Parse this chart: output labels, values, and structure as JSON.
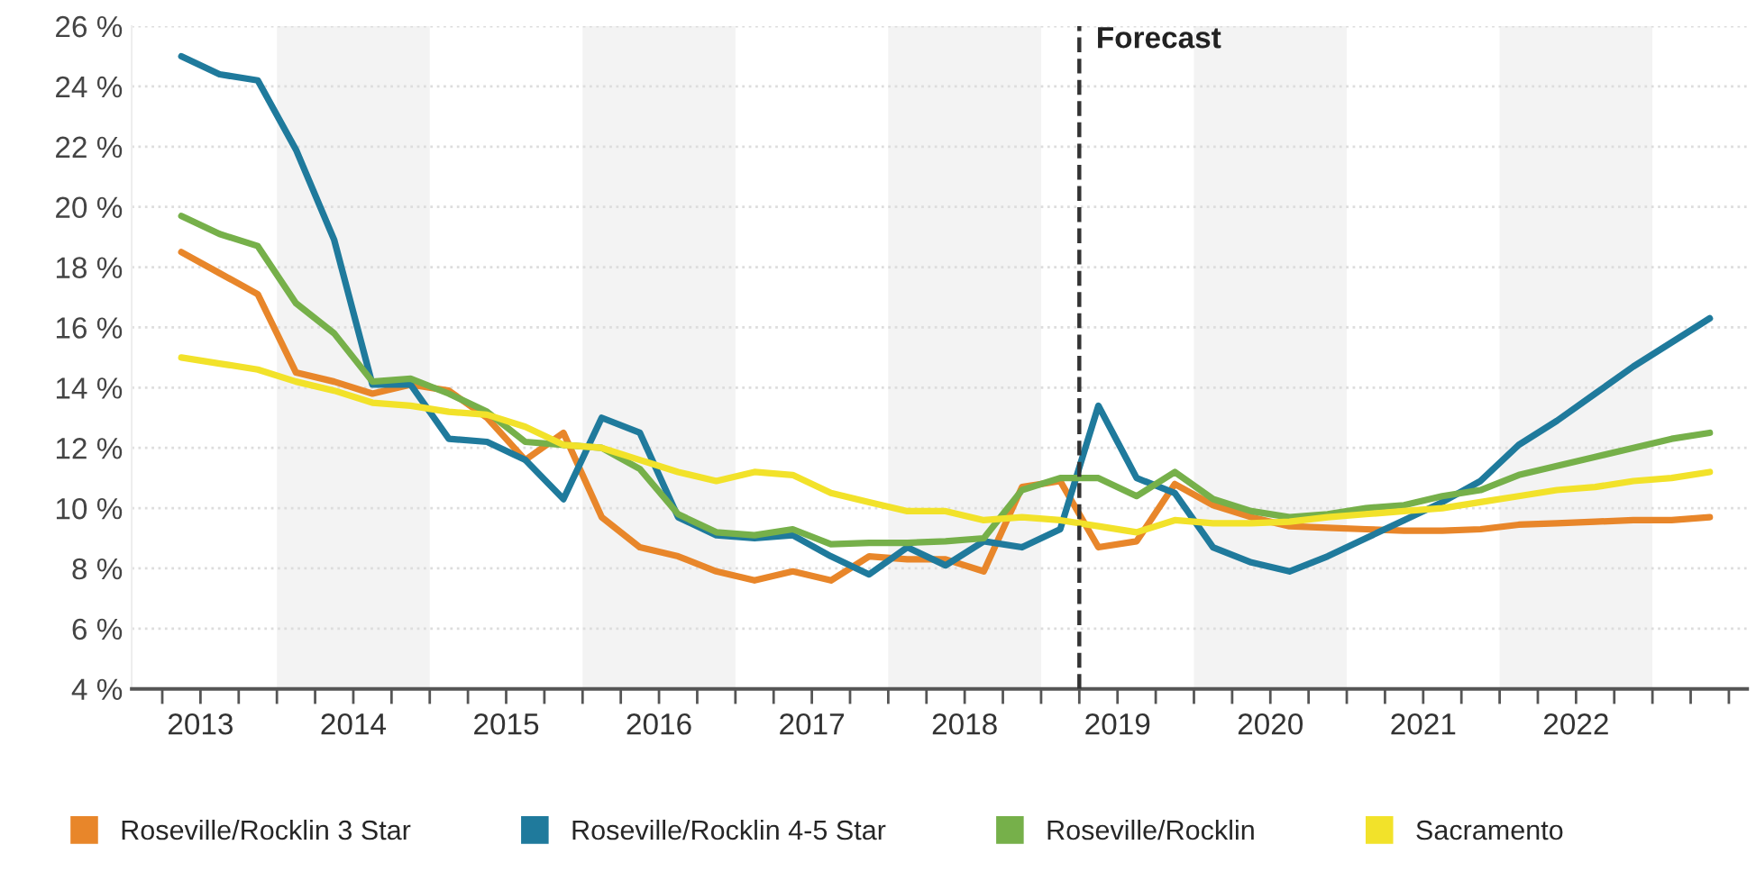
{
  "chart_data": {
    "type": "line",
    "x": [
      2013.375,
      2013.625,
      2013.875,
      2014.125,
      2014.375,
      2014.625,
      2014.875,
      2015.125,
      2015.375,
      2015.625,
      2015.875,
      2016.125,
      2016.375,
      2016.625,
      2016.875,
      2017.125,
      2017.375,
      2017.625,
      2017.875,
      2018.125,
      2018.375,
      2018.625,
      2018.875,
      2019.125,
      2019.375,
      2019.625,
      2019.875,
      2020.125,
      2020.375,
      2020.625,
      2020.875,
      2021.125,
      2021.375,
      2021.625,
      2021.875,
      2022.125,
      2022.375,
      2022.625,
      2022.875,
      2023.125,
      2023.375
    ],
    "series": [
      {
        "name": "Roseville/Rocklin 3 Star",
        "color": "#e8862a",
        "values": [
          18.5,
          17.8,
          17.1,
          14.5,
          14.2,
          13.8,
          14.1,
          13.9,
          13.0,
          11.6,
          12.5,
          9.7,
          8.7,
          8.4,
          7.9,
          7.6,
          7.9,
          7.6,
          8.4,
          8.3,
          8.3,
          7.9,
          10.7,
          10.9,
          8.7,
          8.9,
          10.8,
          10.1,
          9.7,
          9.4,
          9.35,
          9.3,
          9.25,
          9.25,
          9.3,
          9.45,
          9.5,
          9.55,
          9.6,
          9.6,
          9.7
        ]
      },
      {
        "name": "Roseville/Rocklin 4-5 Star",
        "color": "#1f7a9c",
        "values": [
          25.0,
          24.4,
          24.2,
          21.9,
          18.9,
          14.1,
          14.1,
          12.3,
          12.2,
          11.6,
          10.3,
          13.0,
          12.5,
          9.7,
          9.1,
          9.0,
          9.1,
          8.4,
          7.8,
          8.7,
          8.1,
          8.9,
          8.7,
          9.3,
          13.4,
          11.0,
          10.5,
          8.7,
          8.2,
          7.9,
          8.4,
          9.0,
          9.6,
          10.2,
          10.9,
          12.1,
          12.9,
          13.8,
          14.7,
          15.5,
          16.3
        ]
      },
      {
        "name": "Roseville/Rocklin",
        "color": "#76b04a",
        "values": [
          19.7,
          19.1,
          18.7,
          16.8,
          15.8,
          14.2,
          14.3,
          13.8,
          13.2,
          12.2,
          12.1,
          12.0,
          11.3,
          9.8,
          9.2,
          9.1,
          9.3,
          8.8,
          8.85,
          8.85,
          8.9,
          9.0,
          10.6,
          11.0,
          11.0,
          10.4,
          11.2,
          10.3,
          9.9,
          9.7,
          9.8,
          10.0,
          10.1,
          10.4,
          10.6,
          11.1,
          11.4,
          11.7,
          12.0,
          12.3,
          12.5
        ]
      },
      {
        "name": "Sacramento",
        "color": "#f2e22a",
        "values": [
          15.0,
          14.8,
          14.6,
          14.2,
          13.9,
          13.5,
          13.4,
          13.2,
          13.1,
          12.7,
          12.1,
          12.0,
          11.6,
          11.2,
          10.9,
          11.2,
          11.1,
          10.5,
          10.2,
          9.9,
          9.9,
          9.6,
          9.7,
          9.6,
          9.4,
          9.2,
          9.6,
          9.5,
          9.5,
          9.55,
          9.7,
          9.8,
          9.9,
          10.0,
          10.2,
          10.4,
          10.6,
          10.7,
          10.9,
          11.0,
          11.2
        ]
      }
    ],
    "xlim": [
      2013.05,
      2023.62
    ],
    "xticks": [
      {
        "value": 2013.25,
        "label": null
      },
      {
        "value": 2013.5,
        "label": "2013"
      },
      {
        "value": 2013.75,
        "label": null
      },
      {
        "value": 2014,
        "label": null
      },
      {
        "value": 2014.25,
        "label": null
      },
      {
        "value": 2014.5,
        "label": "2014"
      },
      {
        "value": 2014.75,
        "label": null
      },
      {
        "value": 2015,
        "label": null
      },
      {
        "value": 2015.25,
        "label": null
      },
      {
        "value": 2015.5,
        "label": "2015"
      },
      {
        "value": 2015.75,
        "label": null
      },
      {
        "value": 2016,
        "label": null
      },
      {
        "value": 2016.25,
        "label": null
      },
      {
        "value": 2016.5,
        "label": "2016"
      },
      {
        "value": 2016.75,
        "label": null
      },
      {
        "value": 2017,
        "label": null
      },
      {
        "value": 2017.25,
        "label": null
      },
      {
        "value": 2017.5,
        "label": "2017"
      },
      {
        "value": 2017.75,
        "label": null
      },
      {
        "value": 2018,
        "label": null
      },
      {
        "value": 2018.25,
        "label": null
      },
      {
        "value": 2018.5,
        "label": "2018"
      },
      {
        "value": 2018.75,
        "label": null
      },
      {
        "value": 2019,
        "label": null
      },
      {
        "value": 2019.25,
        "label": null
      },
      {
        "value": 2019.5,
        "label": "2019"
      },
      {
        "value": 2019.75,
        "label": null
      },
      {
        "value": 2020,
        "label": null
      },
      {
        "value": 2020.25,
        "label": null
      },
      {
        "value": 2020.5,
        "label": "2020"
      },
      {
        "value": 2020.75,
        "label": null
      },
      {
        "value": 2021,
        "label": null
      },
      {
        "value": 2021.25,
        "label": null
      },
      {
        "value": 2021.5,
        "label": "2021"
      },
      {
        "value": 2021.75,
        "label": null
      },
      {
        "value": 2022,
        "label": null
      },
      {
        "value": 2022.25,
        "label": null
      },
      {
        "value": 2022.5,
        "label": "2022"
      },
      {
        "value": 2022.75,
        "label": null
      },
      {
        "value": 2023,
        "label": null
      },
      {
        "value": 2023.25,
        "label": null
      },
      {
        "value": 2023.5,
        "label": null
      }
    ],
    "ylim": [
      4,
      26
    ],
    "yticks": [
      {
        "value": 4,
        "label": "4 %"
      },
      {
        "value": 6,
        "label": "6 %"
      },
      {
        "value": 8,
        "label": "8 %"
      },
      {
        "value": 10,
        "label": "10 %"
      },
      {
        "value": 12,
        "label": "12 %"
      },
      {
        "value": 14,
        "label": "14 %"
      },
      {
        "value": 16,
        "label": "16 %"
      },
      {
        "value": 18,
        "label": "18 %"
      },
      {
        "value": 20,
        "label": "20 %"
      },
      {
        "value": 22,
        "label": "22 %"
      },
      {
        "value": 24,
        "label": "24 %"
      },
      {
        "value": 26,
        "label": "26 %"
      }
    ],
    "grid": "y",
    "legend": "bottom",
    "line_style": "solid",
    "marker": "none",
    "ref_lines": [
      {
        "axis": "x",
        "value": 2019.25,
        "label": "Forecast",
        "color": "#333333",
        "line_style": "dashed"
      }
    ],
    "bands": [
      {
        "axis": "x",
        "from": 2014,
        "to": 2015,
        "color": "#f3f3f3"
      },
      {
        "axis": "x",
        "from": 2016,
        "to": 2017,
        "color": "#f3f3f3"
      },
      {
        "axis": "x",
        "from": 2018,
        "to": 2019,
        "color": "#f3f3f3"
      },
      {
        "axis": "x",
        "from": 2020,
        "to": 2021,
        "color": "#f3f3f3"
      },
      {
        "axis": "x",
        "from": 2022,
        "to": 2023,
        "color": "#f3f3f3"
      }
    ]
  }
}
